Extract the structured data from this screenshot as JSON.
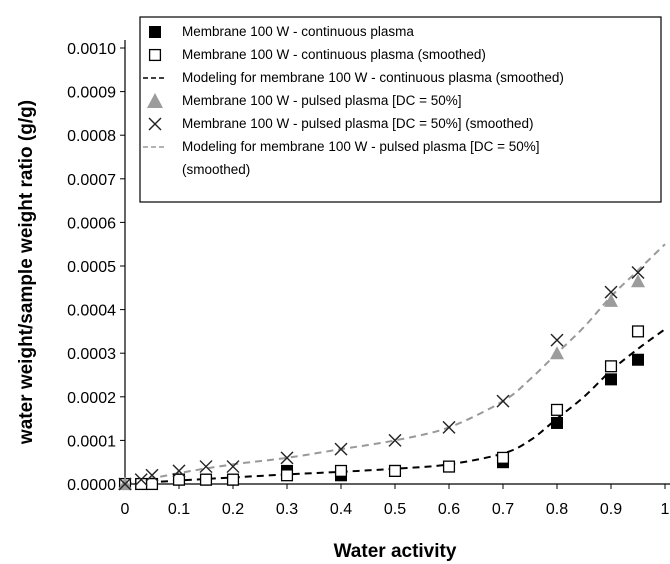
{
  "chart_data": {
    "type": "scatter",
    "xlabel": "Water activity",
    "ylabel": "water weight/sample weight ratio (g/g)",
    "xlim": [
      0,
      1
    ],
    "ylim": [
      0,
      0.001
    ],
    "x_ticks": [
      "0",
      "0.1",
      "0.2",
      "0.3",
      "0.4",
      "0.5",
      "0.6",
      "0.7",
      "0.8",
      "0.9",
      "1"
    ],
    "y_ticks": [
      "0.0000",
      "0.0001",
      "0.0002",
      "0.0003",
      "0.0004",
      "0.0005",
      "0.0006",
      "0.0007",
      "0.0008",
      "0.0009",
      "0.0010"
    ],
    "grid": false,
    "legend_position": "top",
    "series": [
      {
        "name": "Membrane 100 W - continuous plasma",
        "marker": "filled-square",
        "color": "#000000",
        "x": [
          0.0,
          0.03,
          0.05,
          0.1,
          0.15,
          0.2,
          0.3,
          0.4,
          0.5,
          0.6,
          0.7,
          0.8,
          0.9,
          0.95
        ],
        "y": [
          0.0,
          0.0,
          0.0,
          1e-05,
          1e-05,
          1e-05,
          3e-05,
          2e-05,
          3e-05,
          4e-05,
          5e-05,
          0.00014,
          0.00024,
          0.000285
        ]
      },
      {
        "name": "Membrane 100 W - continuous plasma (smoothed)",
        "marker": "open-square",
        "color": "#000000",
        "x": [
          0.0,
          0.03,
          0.05,
          0.1,
          0.15,
          0.2,
          0.3,
          0.4,
          0.5,
          0.6,
          0.7,
          0.8,
          0.9,
          0.95
        ],
        "y": [
          0.0,
          0.0,
          0.0,
          1e-05,
          1e-05,
          1e-05,
          2e-05,
          3e-05,
          3e-05,
          4e-05,
          6e-05,
          0.00017,
          0.00027,
          0.00035
        ]
      },
      {
        "name": "Modeling for membrane 100 W - continuous plasma (smoothed)",
        "marker": "dashed-line",
        "color": "#000000",
        "x": [
          0.0,
          0.1,
          0.2,
          0.3,
          0.4,
          0.5,
          0.6,
          0.7,
          0.75,
          0.8,
          0.85,
          0.9,
          0.95,
          1.0
        ],
        "y": [
          0.0,
          8e-06,
          1.5e-05,
          2.2e-05,
          2.8e-05,
          3.5e-05,
          4.5e-05,
          7e-05,
          0.0001,
          0.00015,
          0.0002,
          0.00026,
          0.00031,
          0.000355
        ]
      },
      {
        "name": "Membrane 100 W - pulsed plasma [DC = 50%]",
        "marker": "gray-triangle",
        "color": "#999999",
        "x": [
          0.0,
          0.8,
          0.9,
          0.95
        ],
        "y": [
          0.0,
          0.0003,
          0.00042,
          0.000465
        ]
      },
      {
        "name": "Membrane 100 W - pulsed plasma [DC = 50%] (smoothed)",
        "marker": "cross",
        "color": "#000000",
        "x": [
          0.0,
          0.03,
          0.05,
          0.1,
          0.15,
          0.2,
          0.3,
          0.4,
          0.5,
          0.6,
          0.7,
          0.8,
          0.9,
          0.95
        ],
        "y": [
          0.0,
          1e-05,
          2e-05,
          3e-05,
          4e-05,
          4e-05,
          6e-05,
          8e-05,
          0.0001,
          0.00013,
          0.00019,
          0.00033,
          0.00044,
          0.000485
        ]
      },
      {
        "name": "Modeling for membrane 100 W - pulsed plasma [DC = 50%] (smoothed)",
        "marker": "gray-dashed-line",
        "color": "#999999",
        "x": [
          0.0,
          0.1,
          0.2,
          0.3,
          0.4,
          0.5,
          0.6,
          0.7,
          0.75,
          0.8,
          0.85,
          0.9,
          0.95,
          1.0
        ],
        "y": [
          0.0,
          2.5e-05,
          4.5e-05,
          6e-05,
          8e-05,
          0.0001,
          0.00013,
          0.00019,
          0.00024,
          0.0003,
          0.00036,
          0.00043,
          0.00049,
          0.00055
        ]
      }
    ],
    "legend": [
      {
        "series": 0,
        "lines": [
          {
            "text": "Membrane 100 W - continuous plasma"
          }
        ]
      },
      {
        "series": 1,
        "lines": [
          {
            "text": "Membrane 100 W - continuous plasma (smoothed)"
          }
        ]
      },
      {
        "series": 2,
        "lines": [
          {
            "text": "Modeling for membrane 100 W - continuous plasma (smoothed)"
          }
        ]
      },
      {
        "series": 3,
        "lines": [
          {
            "text": "Membrane 100 W - pulsed plasma [DC = 50%]"
          }
        ]
      },
      {
        "series": 4,
        "lines": [
          {
            "text": "Membrane 100 W - pulsed plasma [DC = 50%] (smoothed)"
          }
        ]
      },
      {
        "series": 5,
        "lines": [
          {
            "text": "Modeling for membrane 100 W - pulsed plasma [DC = 50%]"
          },
          {
            "text": "(smoothed)"
          }
        ]
      }
    ]
  }
}
